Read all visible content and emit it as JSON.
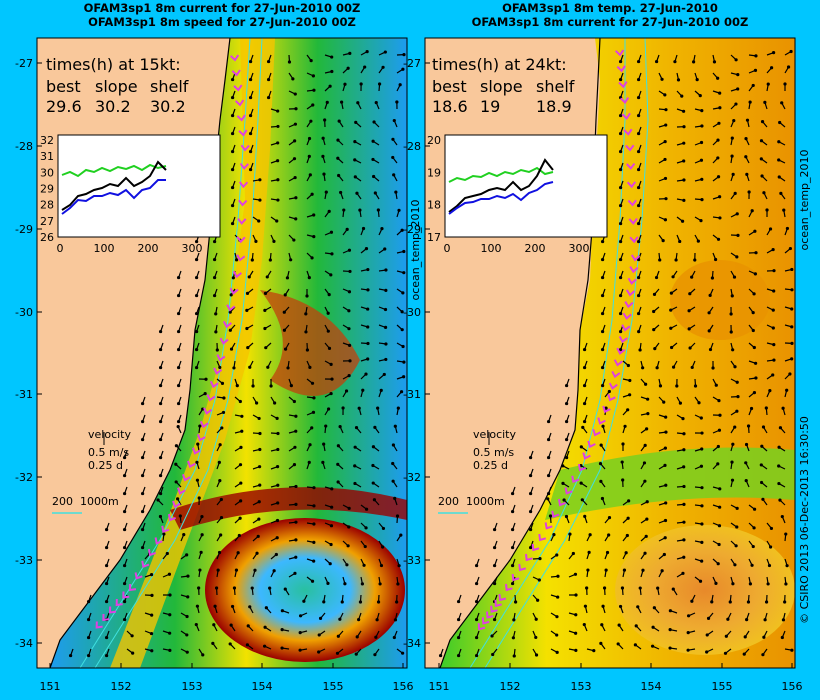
{
  "left": {
    "title1": "OFAM3sp1 8m current for 27-Jun-2010 00Z",
    "title2": "OFAM3sp1 8m speed for 27-Jun-2010 00Z",
    "times_header": "times(h) at 15kt:",
    "cols": [
      "best",
      "slope",
      "shelf"
    ],
    "vals": [
      "29.6",
      "30.2",
      "30.2"
    ],
    "inset_yticks": [
      "32",
      "31",
      "30",
      "29",
      "28",
      "27",
      "26"
    ],
    "inset_xticks": [
      "0",
      "100",
      "200",
      "300"
    ],
    "side_label": "ocean_temp_2010"
  },
  "right": {
    "title1": "OFAM3sp1 8m temp. 27-Jun-2010",
    "title2": "OFAM3sp1 8m current for 27-Jun-2010 00Z",
    "times_header": "times(h) at 24kt:",
    "cols": [
      "best",
      "slope",
      "shelf"
    ],
    "vals": [
      "18.6",
      "19",
      "18.9"
    ],
    "inset_yticks": [
      "20",
      "19",
      "18",
      "17"
    ],
    "inset_xticks": [
      "0",
      "100",
      "200",
      "300"
    ],
    "side_label": "ocean_temp_2010"
  },
  "velocity": {
    "label": "velocity",
    "speed": "0.5 m/s",
    "dur": "0.25 d"
  },
  "depth_legend": {
    "a": "200",
    "b": "1000m"
  },
  "lat_ticks": [
    "-27",
    "-28",
    "-29",
    "-30",
    "-31",
    "-32",
    "-33",
    "-34"
  ],
  "lon_ticks": [
    "151",
    "152",
    "153",
    "154",
    "155",
    "156"
  ],
  "credit": "© CSIRO 2013   06-Dec-2013 16:30:50",
  "colors": {
    "land": "#f9c89b",
    "background": "#00c6ff",
    "route": "#e040e0"
  }
}
